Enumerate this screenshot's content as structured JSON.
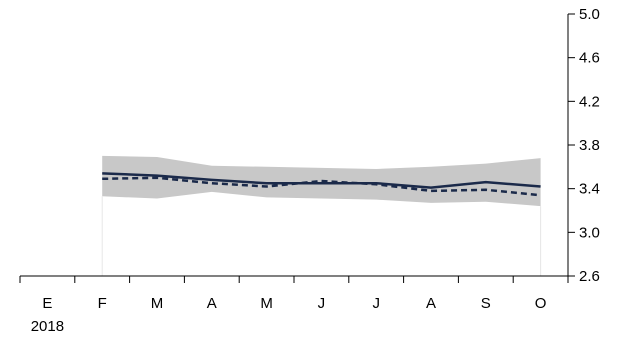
{
  "chart_data": {
    "type": "line",
    "title": "",
    "xlabel": "",
    "ylabel": "",
    "categories": [
      "E",
      "F",
      "M",
      "A",
      "M",
      "J",
      "J",
      "A",
      "S",
      "O"
    ],
    "year_label": "2018",
    "ylim": [
      2.6,
      5.0
    ],
    "yticks": [
      "5.0",
      "4.6",
      "4.2",
      "3.8",
      "3.4",
      "3.0",
      "2.6"
    ],
    "y_axis_side": "right",
    "grid": false,
    "series": [
      {
        "style": "solid",
        "color": "#1b2a4a",
        "values": [
          null,
          3.54,
          3.52,
          3.48,
          3.45,
          3.45,
          3.45,
          3.41,
          3.46,
          3.42
        ]
      },
      {
        "style": "dashed",
        "color": "#1b2a4a",
        "values": [
          null,
          3.49,
          3.5,
          3.45,
          3.42,
          3.47,
          3.44,
          3.38,
          3.39,
          3.34
        ]
      }
    ],
    "band": {
      "color": "#c8c8c8",
      "upper": [
        null,
        3.7,
        3.69,
        3.61,
        3.6,
        3.59,
        3.58,
        3.6,
        3.63,
        3.68
      ],
      "lower": [
        null,
        3.33,
        3.31,
        3.37,
        3.32,
        3.31,
        3.3,
        3.27,
        3.28,
        3.24
      ]
    }
  }
}
